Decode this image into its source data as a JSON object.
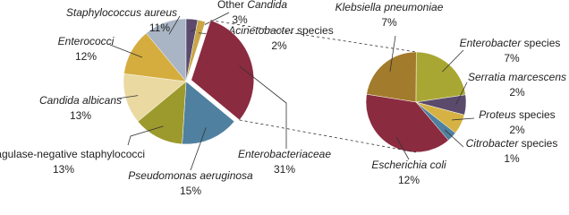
{
  "chart_data": {
    "type": "pie-of-pie",
    "pies": [
      {
        "labels": [
          "Staphylococcus aureus",
          "Other Candida",
          "Acinetobacter species",
          "Enterobacteriaceae",
          "Pseudomonas aeruginosa",
          "Coagulase-negative staphylococci",
          "Candida albicans",
          "Enterococci"
        ],
        "values": [
          11,
          3,
          2,
          31,
          15,
          13,
          13,
          12
        ],
        "value_labels": [
          "11%",
          "3%",
          "2%",
          "31%",
          "15%",
          "13%",
          "13%",
          "12%"
        ],
        "colors": [
          "#a9b5c5",
          "#5b4a6c",
          "#c9a548",
          "#8b2b40",
          "#50809f",
          "#9c9a2c",
          "#ead9a0",
          "#d5ad3e"
        ]
      },
      {
        "labels": [
          "Klebsiella pneumoniae",
          "Enterobacter species",
          "Serratia marcescens",
          "Proteus species",
          "Citrobacter species",
          "Escherichia coli"
        ],
        "values": [
          7,
          7,
          2,
          2,
          1,
          12
        ],
        "value_labels": [
          "7%",
          "7%",
          "2%",
          "2%",
          "1%",
          "12%"
        ],
        "colors": [
          "#a37b2c",
          "#a9a733",
          "#5b4a6c",
          "#d6b244",
          "#50809f",
          "#8b2b40"
        ]
      }
    ]
  }
}
